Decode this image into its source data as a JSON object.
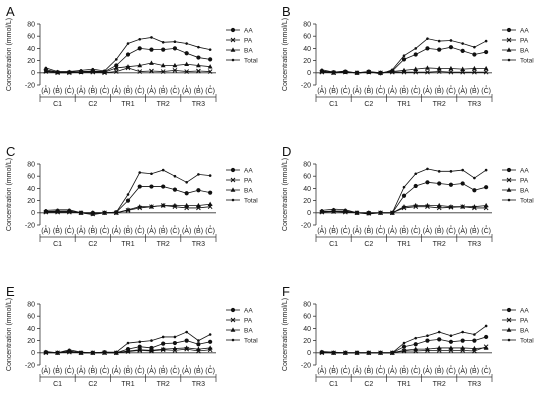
{
  "chart_data": [
    {
      "type": "line",
      "panel_label": "A",
      "ylabel": "Concentration (mmol/L)",
      "ylim": [
        -20,
        80
      ],
      "yticks": [
        -20,
        0,
        20,
        40,
        60,
        80
      ],
      "categories": [
        "(A)",
        "(B)",
        "(C)",
        "(A)",
        "(B)",
        "(C)",
        "(A)",
        "(B)",
        "(C)",
        "(A)",
        "(B)",
        "(C)",
        "(A)",
        "(B)",
        "(C)"
      ],
      "groups": [
        "C1",
        "C2",
        "TR1",
        "TR2",
        "TR3"
      ],
      "legend_position": "right",
      "series": [
        {
          "name": "AA",
          "marker": "circle",
          "values": [
            5,
            1,
            1,
            2,
            3,
            2,
            12,
            30,
            40,
            38,
            38,
            40,
            32,
            25,
            22
          ]
        },
        {
          "name": "PA",
          "marker": "x",
          "values": [
            2,
            0,
            0,
            1,
            1,
            0,
            2,
            8,
            2,
            3,
            2,
            4,
            2,
            3,
            2
          ]
        },
        {
          "name": "BA",
          "marker": "triangle",
          "values": [
            3,
            1,
            1,
            1,
            2,
            1,
            8,
            10,
            12,
            16,
            12,
            12,
            14,
            12,
            10
          ]
        },
        {
          "name": "Total",
          "marker": "dot",
          "values": [
            8,
            2,
            2,
            4,
            6,
            3,
            22,
            48,
            55,
            58,
            50,
            51,
            48,
            42,
            38
          ]
        }
      ]
    },
    {
      "type": "line",
      "panel_label": "B",
      "ylabel": "Concentration (mmol/L)",
      "ylim": [
        -20,
        80
      ],
      "yticks": [
        -20,
        0,
        20,
        40,
        60,
        80
      ],
      "categories": [
        "(A)",
        "(B)",
        "(C)",
        "(A)",
        "(B)",
        "(C)",
        "(A)",
        "(B)",
        "(C)",
        "(A)",
        "(B)",
        "(C)",
        "(A)",
        "(B)",
        "(C)"
      ],
      "groups": [
        "C1",
        "C2",
        "TR1",
        "TR2",
        "TR3"
      ],
      "legend_position": "right",
      "series": [
        {
          "name": "AA",
          "marker": "circle",
          "values": [
            3,
            1,
            2,
            0,
            2,
            0,
            3,
            22,
            30,
            40,
            38,
            42,
            36,
            30,
            34
          ]
        },
        {
          "name": "PA",
          "marker": "x",
          "values": [
            1,
            0,
            1,
            0,
            1,
            0,
            1,
            1,
            1,
            1,
            2,
            1,
            1,
            1,
            1
          ]
        },
        {
          "name": "BA",
          "marker": "triangle",
          "values": [
            2,
            0,
            1,
            0,
            1,
            0,
            2,
            4,
            6,
            8,
            7,
            7,
            6,
            7,
            7
          ]
        },
        {
          "name": "Total",
          "marker": "dot",
          "values": [
            5,
            1,
            3,
            -1,
            2,
            -2,
            5,
            28,
            40,
            56,
            52,
            53,
            48,
            42,
            52
          ]
        }
      ]
    },
    {
      "type": "line",
      "panel_label": "C",
      "ylabel": "Concentration (mmol/L)",
      "ylim": [
        -20,
        80
      ],
      "yticks": [
        -20,
        0,
        20,
        40,
        60,
        80
      ],
      "categories": [
        "(A)",
        "(B)",
        "(C)",
        "(A)",
        "(B)",
        "(C)",
        "(A)",
        "(B)",
        "(C)",
        "(A)",
        "(B)",
        "(C)",
        "(A)",
        "(B)",
        "(C)"
      ],
      "groups": [
        "C1",
        "C2",
        "TR1",
        "TR2",
        "TR3"
      ],
      "legend_position": "right",
      "series": [
        {
          "name": "AA",
          "marker": "circle",
          "values": [
            2,
            3,
            3,
            0,
            0,
            0,
            1,
            20,
            43,
            43,
            43,
            38,
            32,
            37,
            33
          ]
        },
        {
          "name": "PA",
          "marker": "x",
          "values": [
            1,
            1,
            1,
            0,
            -2,
            0,
            0,
            4,
            8,
            10,
            12,
            10,
            8,
            8,
            10
          ]
        },
        {
          "name": "BA",
          "marker": "triangle",
          "values": [
            2,
            2,
            2,
            0,
            0,
            0,
            0,
            5,
            10,
            10,
            12,
            12,
            12,
            12,
            14
          ]
        },
        {
          "name": "Total",
          "marker": "dot",
          "values": [
            4,
            5,
            5,
            0,
            -3,
            0,
            1,
            30,
            66,
            64,
            70,
            60,
            50,
            63,
            61
          ]
        }
      ]
    },
    {
      "type": "line",
      "panel_label": "D",
      "ylabel": "Concentration (mmol/L)",
      "ylim": [
        -20,
        80
      ],
      "yticks": [
        -20,
        0,
        20,
        40,
        60,
        80
      ],
      "categories": [
        "(A)",
        "(B)",
        "(C)",
        "(A)",
        "(B)",
        "(C)",
        "(A)",
        "(B)",
        "(C)",
        "(A)",
        "(B)",
        "(C)",
        "(A)",
        "(B)",
        "(C)"
      ],
      "groups": [
        "C1",
        "C2",
        "TR1",
        "TR2",
        "TR3"
      ],
      "legend_position": "right",
      "series": [
        {
          "name": "AA",
          "marker": "circle",
          "values": [
            2,
            3,
            3,
            0,
            0,
            0,
            0,
            28,
            44,
            50,
            48,
            46,
            48,
            37,
            42
          ]
        },
        {
          "name": "PA",
          "marker": "x",
          "values": [
            1,
            2,
            1,
            0,
            -1,
            0,
            0,
            8,
            10,
            10,
            8,
            9,
            10,
            8,
            8
          ]
        },
        {
          "name": "BA",
          "marker": "triangle",
          "values": [
            2,
            2,
            2,
            0,
            0,
            0,
            0,
            10,
            12,
            12,
            12,
            10,
            10,
            10,
            12
          ]
        },
        {
          "name": "Total",
          "marker": "dot",
          "values": [
            4,
            6,
            5,
            0,
            -2,
            0,
            0,
            42,
            64,
            72,
            68,
            68,
            70,
            57,
            70
          ]
        }
      ]
    },
    {
      "type": "line",
      "panel_label": "E",
      "ylabel": "Concentration (mmol/L)",
      "ylim": [
        -20,
        80
      ],
      "yticks": [
        -20,
        0,
        20,
        40,
        60,
        80
      ],
      "categories": [
        "(A)",
        "(B)",
        "(C)",
        "(A)",
        "(B)",
        "(C)",
        "(A)",
        "(B)",
        "(C)",
        "(A)",
        "(B)",
        "(C)",
        "(A)",
        "(B)",
        "(C)"
      ],
      "groups": [
        "C1",
        "C2",
        "TR1",
        "TR2",
        "TR3"
      ],
      "legend_position": "right",
      "series": [
        {
          "name": "AA",
          "marker": "circle",
          "values": [
            1,
            0,
            3,
            0,
            0,
            1,
            0,
            6,
            10,
            8,
            15,
            16,
            20,
            14,
            18
          ]
        },
        {
          "name": "PA",
          "marker": "x",
          "values": [
            0,
            0,
            1,
            0,
            0,
            0,
            0,
            2,
            4,
            3,
            5,
            4,
            6,
            3,
            5
          ]
        },
        {
          "name": "BA",
          "marker": "triangle",
          "values": [
            1,
            0,
            2,
            0,
            0,
            0,
            0,
            3,
            5,
            4,
            6,
            7,
            8,
            6,
            8
          ]
        },
        {
          "name": "Total",
          "marker": "dot",
          "values": [
            2,
            0,
            5,
            1,
            0,
            1,
            1,
            16,
            18,
            20,
            26,
            26,
            34,
            20,
            30
          ]
        }
      ]
    },
    {
      "type": "line",
      "panel_label": "F",
      "ylabel": "Concentration (mmol/L)",
      "ylim": [
        -20,
        80
      ],
      "yticks": [
        -20,
        0,
        20,
        40,
        60,
        80
      ],
      "categories": [
        "(A)",
        "(B)",
        "(C)",
        "(A)",
        "(B)",
        "(C)",
        "(A)",
        "(B)",
        "(C)",
        "(A)",
        "(B)",
        "(C)",
        "(A)",
        "(B)",
        "(C)"
      ],
      "groups": [
        "C1",
        "C2",
        "TR1",
        "TR2",
        "TR3"
      ],
      "legend_position": "right",
      "series": [
        {
          "name": "AA",
          "marker": "circle",
          "values": [
            1,
            0,
            0,
            0,
            0,
            0,
            0,
            10,
            14,
            20,
            22,
            18,
            20,
            20,
            26
          ]
        },
        {
          "name": "PA",
          "marker": "x",
          "values": [
            0,
            0,
            0,
            0,
            0,
            0,
            0,
            3,
            3,
            4,
            4,
            4,
            4,
            3,
            10
          ]
        },
        {
          "name": "BA",
          "marker": "triangle",
          "values": [
            1,
            0,
            0,
            0,
            0,
            0,
            0,
            4,
            6,
            6,
            8,
            8,
            8,
            7,
            8
          ]
        },
        {
          "name": "Total",
          "marker": "dot",
          "values": [
            2,
            1,
            0,
            0,
            0,
            0,
            0,
            16,
            24,
            28,
            34,
            28,
            34,
            30,
            44
          ]
        }
      ]
    }
  ]
}
